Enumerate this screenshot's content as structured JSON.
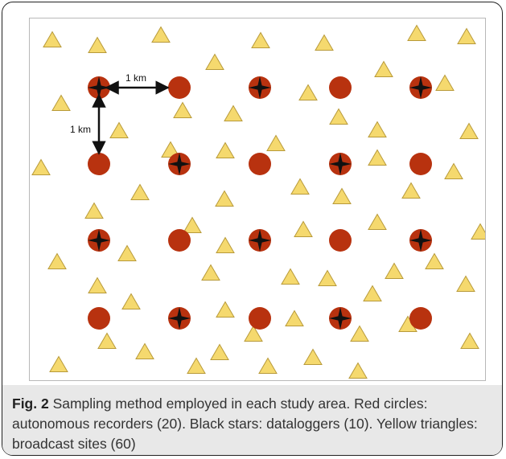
{
  "figure": {
    "label": "Fig. 2",
    "caption": " Sampling method employed in each study area. Red circles: autonomous recorders (20). Black stars: dataloggers (10). Yellow triangles: broadcast sites (60)"
  },
  "scale": {
    "horizontal_label": "1 km",
    "vertical_label": "1 km"
  },
  "colors": {
    "recorder": "#b8320f",
    "triangle_fill": "#f5d96e",
    "triangle_stroke": "#b89a3a",
    "star": "#111111"
  },
  "recorders": {
    "columns": 5,
    "rows": 4,
    "with_datalogger": [
      [
        0,
        0
      ],
      [
        2,
        0
      ],
      [
        4,
        0
      ],
      [
        1,
        1
      ],
      [
        3,
        1
      ],
      [
        0,
        2
      ],
      [
        2,
        2
      ],
      [
        4,
        2
      ],
      [
        1,
        3
      ],
      [
        3,
        3
      ]
    ]
  },
  "broadcast_site_count": 60
}
